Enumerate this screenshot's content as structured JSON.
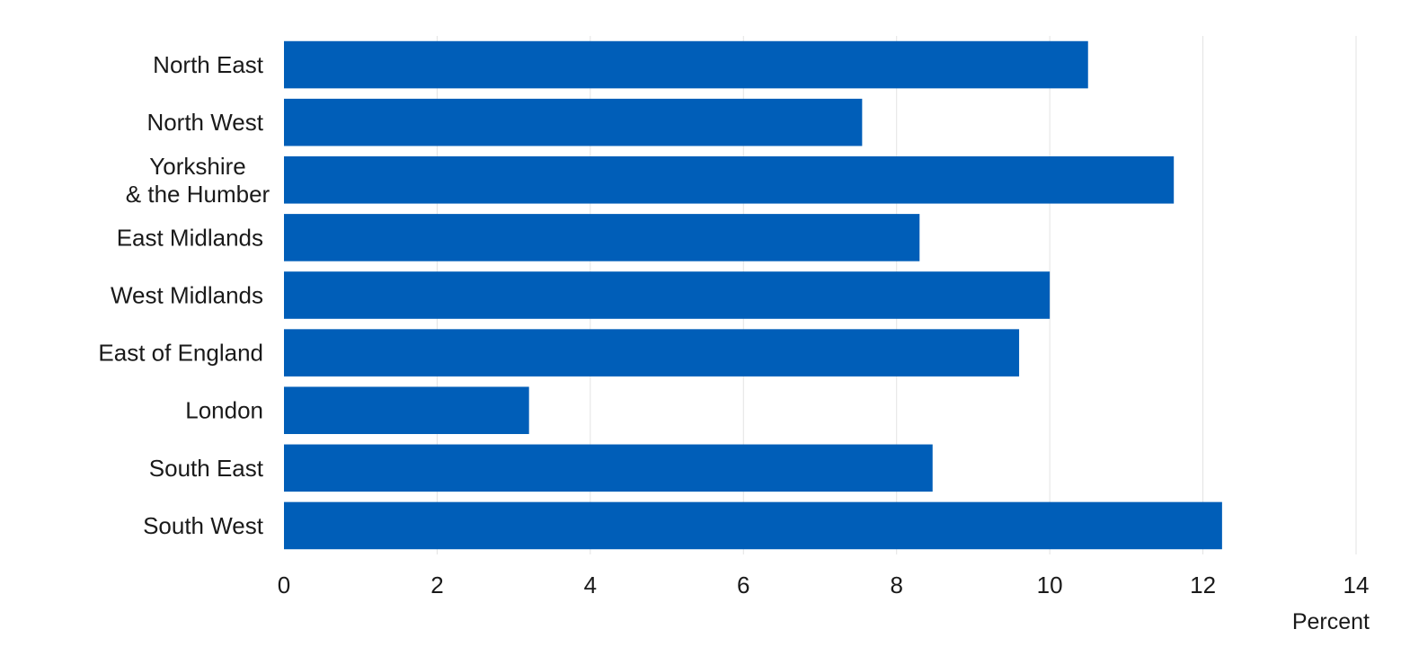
{
  "chart_data": {
    "type": "bar",
    "orientation": "horizontal",
    "categories": [
      [
        "North East"
      ],
      [
        "North West"
      ],
      [
        "Yorkshire",
        "& the Humber"
      ],
      [
        "East Midlands"
      ],
      [
        "West Midlands"
      ],
      [
        "East of England"
      ],
      [
        "London"
      ],
      [
        "South East"
      ],
      [
        "South West"
      ]
    ],
    "values": [
      10.5,
      7.55,
      11.62,
      8.3,
      10.0,
      9.6,
      3.2,
      8.47,
      12.25
    ],
    "xlabel": "Percent",
    "ylabel": "",
    "xlim": [
      0,
      14
    ],
    "xticks": [
      0,
      2,
      4,
      6,
      8,
      10,
      12,
      14
    ],
    "grid": "vertical",
    "colors": {
      "bar": "#005EB8",
      "grid": "#e3e3e3"
    }
  }
}
